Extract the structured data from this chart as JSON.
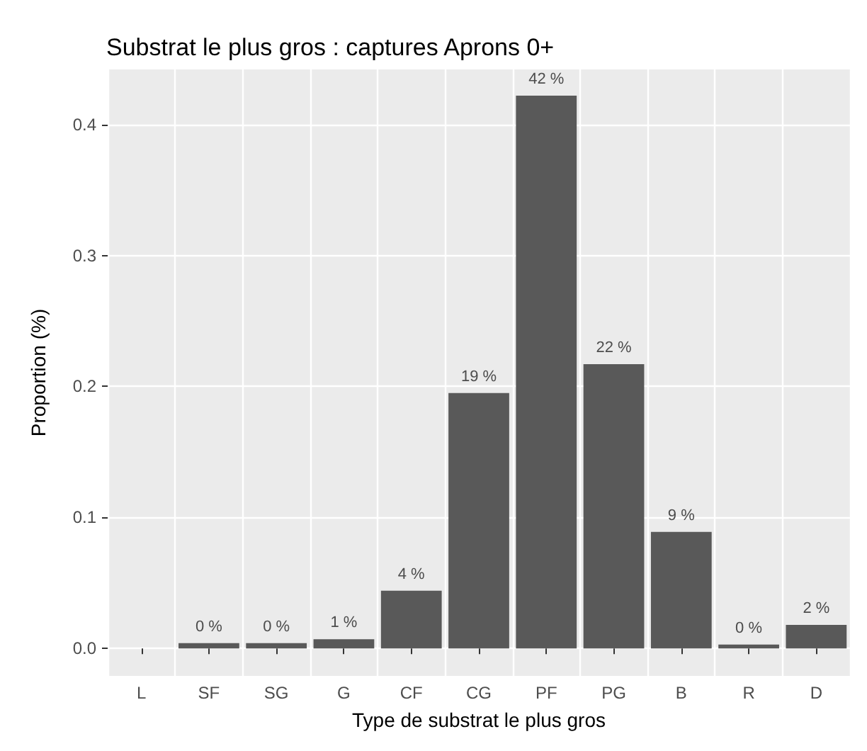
{
  "chart_data": {
    "type": "bar",
    "title": "Substrat le plus gros : captures Aprons 0+",
    "xlabel": "Type de substrat le plus gros",
    "ylabel": "Proportion (%)",
    "categories": [
      "L",
      "SF",
      "SG",
      "G",
      "CF",
      "CG",
      "PF",
      "PG",
      "B",
      "R",
      "D"
    ],
    "values": [
      null,
      0.004,
      0.004,
      0.007,
      0.044,
      0.195,
      0.422,
      0.217,
      0.089,
      0.003,
      0.018
    ],
    "value_labels": [
      null,
      "0 %",
      "0 %",
      "1 %",
      "4 %",
      "19 %",
      "42 %",
      "22 %",
      "9 %",
      "0 %",
      "2 %"
    ],
    "color": "#595959",
    "ylim": [
      -0.021,
      0.442
    ],
    "yticks": [
      {
        "value": 0,
        "label": "0.0"
      },
      0.1,
      0.2,
      0.3,
      0.4
    ],
    "grid": true
  }
}
